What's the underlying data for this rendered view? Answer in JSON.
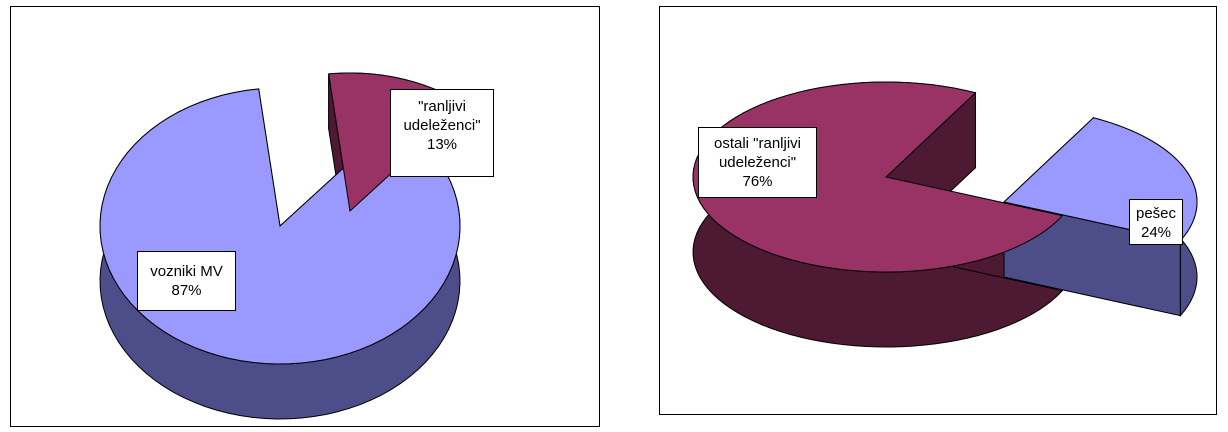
{
  "colors": {
    "blue_top": "#9999ff",
    "blue_side": "#4d4d8a",
    "maroon_top": "#993366",
    "maroon_side": "#4d1933",
    "edge": "#000000"
  },
  "chart_data": [
    {
      "type": "pie",
      "slices": [
        {
          "label_lines": [
            "vozniki MV",
            "87%"
          ],
          "value": 87
        },
        {
          "label_lines": [
            "\"ranljivi",
            "udeleženci\"",
            "13%"
          ],
          "value": 13,
          "exploded": true
        }
      ]
    },
    {
      "type": "pie",
      "slices": [
        {
          "label_lines": [
            "ostali \"ranljivi",
            "udeleženci\"",
            "76%"
          ],
          "value": 76
        },
        {
          "label_lines": [
            "pešec",
            "24%"
          ],
          "value": 24,
          "exploded": true
        }
      ]
    }
  ]
}
